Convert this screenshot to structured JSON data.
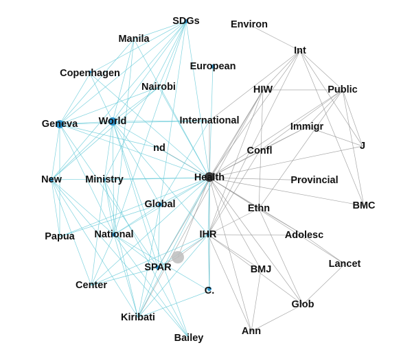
{
  "colors": {
    "edge_cyan": "#5cc7d6",
    "edge_gray": "#8a8a8a",
    "node_cyan": "#2a95cf",
    "node_dark": "#3a3a3a",
    "node_gray": "#bdbdbd",
    "label": "#111111"
  },
  "nodes": [
    {
      "id": "sdgs",
      "label": "SDGs",
      "color": "cyan",
      "size": 3
    },
    {
      "id": "environ",
      "label": "Environ",
      "color": "none",
      "size": 0
    },
    {
      "id": "manila",
      "label": "Manila",
      "color": "none",
      "size": 0
    },
    {
      "id": "int",
      "label": "Int",
      "color": "none",
      "size": 0
    },
    {
      "id": "european",
      "label": "European",
      "color": "cyan",
      "size": 3
    },
    {
      "id": "copenhagen",
      "label": "Copenhagen",
      "color": "cyan",
      "size": 2
    },
    {
      "id": "public",
      "label": "Public",
      "color": "none",
      "size": 0
    },
    {
      "id": "nairobi",
      "label": "Nairobi",
      "color": "none",
      "size": 0
    },
    {
      "id": "hiw",
      "label": "HIW",
      "color": "none",
      "size": 0
    },
    {
      "id": "geneva",
      "label": "Geneva",
      "color": "cyan",
      "size": 6
    },
    {
      "id": "world",
      "label": "World",
      "color": "cyan",
      "size": 6
    },
    {
      "id": "international",
      "label": "International",
      "color": "none",
      "size": 0
    },
    {
      "id": "immigr",
      "label": "Immigr",
      "color": "none",
      "size": 0
    },
    {
      "id": "j",
      "label": "J",
      "color": "none",
      "size": 0
    },
    {
      "id": "nd",
      "label": "nd",
      "color": "none",
      "size": 0
    },
    {
      "id": "confl",
      "label": "Confl",
      "color": "none",
      "size": 0
    },
    {
      "id": "new",
      "label": "New",
      "color": "cyan",
      "size": 3
    },
    {
      "id": "ministry",
      "label": "Ministry",
      "color": "cyan",
      "size": 2
    },
    {
      "id": "health",
      "label": "Health",
      "color": "dark",
      "size": 7
    },
    {
      "id": "provincial",
      "label": "Provincial",
      "color": "none",
      "size": 0
    },
    {
      "id": "global",
      "label": "Global",
      "color": "cyan",
      "size": 3
    },
    {
      "id": "bmc",
      "label": "BMC",
      "color": "none",
      "size": 0
    },
    {
      "id": "ethn",
      "label": "Ethn",
      "color": "none",
      "size": 0
    },
    {
      "id": "papua",
      "label": "Papua",
      "color": "none",
      "size": 0
    },
    {
      "id": "national",
      "label": "National",
      "color": "cyan",
      "size": 3
    },
    {
      "id": "ihr",
      "label": "IHR",
      "color": "cyan",
      "size": 2
    },
    {
      "id": "adolesc",
      "label": "Adolesc",
      "color": "none",
      "size": 0
    },
    {
      "id": "gray_node",
      "label": "",
      "color": "gray",
      "size": 9
    },
    {
      "id": "spar",
      "label": "SPAR",
      "color": "cyan",
      "size": 3
    },
    {
      "id": "bmj",
      "label": "BMJ",
      "color": "none",
      "size": 0
    },
    {
      "id": "lancet",
      "label": "Lancet",
      "color": "none",
      "size": 0
    },
    {
      "id": "center",
      "label": "Center",
      "color": "none",
      "size": 0
    },
    {
      "id": "c",
      "label": "C.",
      "color": "cyan",
      "size": 3
    },
    {
      "id": "glob",
      "label": "Glob",
      "color": "none",
      "size": 0
    },
    {
      "id": "kiribati",
      "label": "Kiribati",
      "color": "none",
      "size": 0
    },
    {
      "id": "ann",
      "label": "Ann",
      "color": "none",
      "size": 0
    },
    {
      "id": "bailey",
      "label": "Bailey",
      "color": "none",
      "size": 0
    }
  ],
  "edges_cyan": [
    [
      "sdgs",
      "geneva"
    ],
    [
      "sdgs",
      "world"
    ],
    [
      "sdgs",
      "copenhagen"
    ],
    [
      "sdgs",
      "national"
    ],
    [
      "sdgs",
      "new"
    ],
    [
      "sdgs",
      "global"
    ],
    [
      "sdgs",
      "manila"
    ],
    [
      "sdgs",
      "nairobi"
    ],
    [
      "sdgs",
      "health"
    ],
    [
      "sdgs",
      "ministry"
    ],
    [
      "manila",
      "world"
    ],
    [
      "manila",
      "national"
    ],
    [
      "manila",
      "geneva"
    ],
    [
      "manila",
      "health"
    ],
    [
      "copenhagen",
      "geneva"
    ],
    [
      "copenhagen",
      "world"
    ],
    [
      "copenhagen",
      "health"
    ],
    [
      "nairobi",
      "geneva"
    ],
    [
      "nairobi",
      "world"
    ],
    [
      "nairobi",
      "new"
    ],
    [
      "nairobi",
      "health"
    ],
    [
      "european",
      "health"
    ],
    [
      "geneva",
      "world"
    ],
    [
      "geneva",
      "new"
    ],
    [
      "geneva",
      "health"
    ],
    [
      "geneva",
      "papua"
    ],
    [
      "geneva",
      "national"
    ],
    [
      "geneva",
      "nd"
    ],
    [
      "geneva",
      "international"
    ],
    [
      "geneva",
      "spar"
    ],
    [
      "world",
      "new"
    ],
    [
      "world",
      "health"
    ],
    [
      "world",
      "national"
    ],
    [
      "world",
      "global"
    ],
    [
      "world",
      "ministry"
    ],
    [
      "world",
      "spar"
    ],
    [
      "world",
      "bailey"
    ],
    [
      "world",
      "international"
    ],
    [
      "world",
      "ihr"
    ],
    [
      "new",
      "health"
    ],
    [
      "new",
      "national"
    ],
    [
      "new",
      "papua"
    ],
    [
      "new",
      "center"
    ],
    [
      "new",
      "kiribati"
    ],
    [
      "new",
      "bailey"
    ],
    [
      "ministry",
      "health"
    ],
    [
      "ministry",
      "national"
    ],
    [
      "ministry",
      "kiribati"
    ],
    [
      "ministry",
      "bailey"
    ],
    [
      "papua",
      "global"
    ],
    [
      "papua",
      "health"
    ],
    [
      "national",
      "health"
    ],
    [
      "national",
      "spar"
    ],
    [
      "national",
      "kiribati"
    ],
    [
      "national",
      "center"
    ],
    [
      "national",
      "global"
    ],
    [
      "national",
      "c"
    ],
    [
      "national",
      "bailey"
    ],
    [
      "global",
      "health"
    ],
    [
      "global",
      "spar"
    ],
    [
      "global",
      "kiribati"
    ],
    [
      "global",
      "international"
    ],
    [
      "spar",
      "health"
    ],
    [
      "spar",
      "ihr"
    ],
    [
      "spar",
      "center"
    ],
    [
      "spar",
      "kiribati"
    ],
    [
      "ihr",
      "health"
    ],
    [
      "ihr",
      "c"
    ],
    [
      "ihr",
      "kiribati"
    ],
    [
      "ihr",
      "center"
    ],
    [
      "center",
      "health"
    ],
    [
      "kiribati",
      "health"
    ],
    [
      "c",
      "health"
    ],
    [
      "kiribati",
      "c"
    ],
    [
      "center",
      "ministry"
    ]
  ],
  "edges_gray": [
    [
      "environ",
      "int"
    ],
    [
      "int",
      "public"
    ],
    [
      "int",
      "health"
    ],
    [
      "int",
      "ihr"
    ],
    [
      "int",
      "hiw"
    ],
    [
      "int",
      "j"
    ],
    [
      "int",
      "international"
    ],
    [
      "int",
      "bmc"
    ],
    [
      "hiw",
      "health"
    ],
    [
      "hiw",
      "ihr"
    ],
    [
      "hiw",
      "public"
    ],
    [
      "hiw",
      "ethn"
    ],
    [
      "hiw",
      "spar"
    ],
    [
      "hiw",
      "kiribati"
    ],
    [
      "public",
      "immigr"
    ],
    [
      "public",
      "j"
    ],
    [
      "public",
      "health"
    ],
    [
      "public",
      "bmc"
    ],
    [
      "public",
      "confl"
    ],
    [
      "public",
      "ethn"
    ],
    [
      "immigr",
      "health"
    ],
    [
      "immigr",
      "confl"
    ],
    [
      "international",
      "health"
    ],
    [
      "j",
      "health"
    ],
    [
      "j",
      "immigr"
    ],
    [
      "confl",
      "health"
    ],
    [
      "confl",
      "ihr"
    ],
    [
      "provincial",
      "health"
    ],
    [
      "bmc",
      "health"
    ],
    [
      "ethn",
      "health"
    ],
    [
      "ethn",
      "adolesc"
    ],
    [
      "ethn",
      "glob"
    ],
    [
      "ethn",
      "ihr"
    ],
    [
      "adolesc",
      "health"
    ],
    [
      "adolesc",
      "ihr"
    ],
    [
      "health",
      "bmj"
    ],
    [
      "health",
      "lancet"
    ],
    [
      "health",
      "glob"
    ],
    [
      "health",
      "ann"
    ],
    [
      "health",
      "c"
    ],
    [
      "health",
      "gray_node"
    ],
    [
      "health",
      "nd"
    ],
    [
      "bmj",
      "ihr"
    ],
    [
      "bmj",
      "ann"
    ],
    [
      "lancet",
      "glob"
    ],
    [
      "lancet",
      "adolesc"
    ],
    [
      "glob",
      "ann"
    ],
    [
      "glob",
      "ihr"
    ],
    [
      "ann",
      "ihr"
    ],
    [
      "gray_node",
      "ihr"
    ],
    [
      "gray_node",
      "spar"
    ]
  ]
}
